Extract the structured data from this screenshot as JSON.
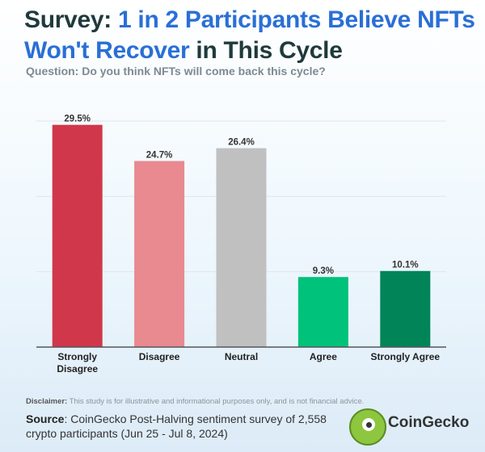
{
  "header": {
    "title_part1": "Survey: ",
    "title_accent": "1 in 2 Participants Believe NFTs Won't Recover",
    "title_part2": " in This Cycle",
    "question": "Question: Do you think NFTs will come back this cycle?"
  },
  "chart_data": {
    "type": "bar",
    "categories": [
      "Strongly Disagree",
      "Disagree",
      "Neutral",
      "Agree",
      "Strongly Agree"
    ],
    "values": [
      29.5,
      24.7,
      26.4,
      9.3,
      10.1
    ],
    "value_labels": [
      "29.5%",
      "24.7%",
      "26.4%",
      "9.3%",
      "10.1%"
    ],
    "colors": [
      "#d1374a",
      "#e88a90",
      "#c0c0c0",
      "#00c27a",
      "#008458"
    ],
    "ylim": [
      0,
      30
    ],
    "grid": true,
    "title": "",
    "xlabel": "",
    "ylabel": ""
  },
  "footer": {
    "disclaimer_label": "Disclaimer:",
    "disclaimer_text": " This study is for illustrative and informational purposes only, and is not financial advice.",
    "source_label": "Source",
    "source_text": ": CoinGecko Post-Halving sentiment survey of 2,558 crypto participants (Jun 25 - Jul 8, 2024)",
    "logo_text": "CoinGecko"
  }
}
